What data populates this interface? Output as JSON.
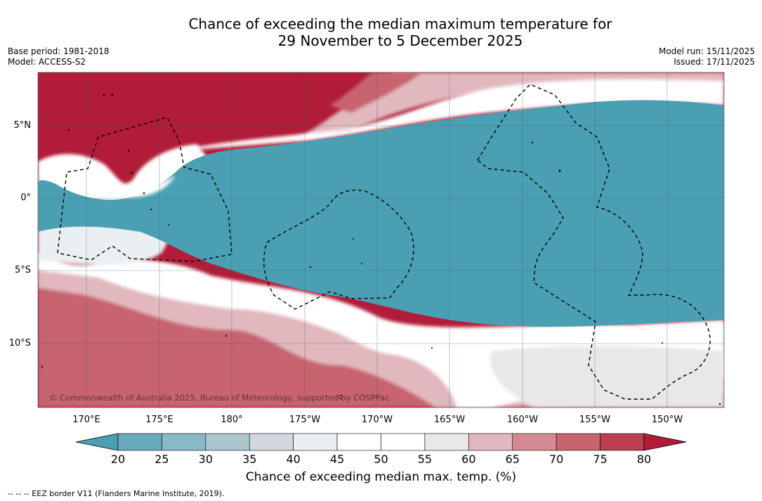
{
  "title_line1": "Chance of exceeding the median maximum temperature for",
  "title_line2": "29 November to 5 December 2025",
  "base_period": "Base period: 1981-2018",
  "model": "Model: ACCESS-S2",
  "model_run": "Model run: 15/11/2025",
  "issued": "Issued: 17/11/2025",
  "copyright": "© Commonwealth of Australia 2025, Bureau of Meteorology, supported by COSPPac",
  "lat_labels": [
    "5°N",
    "0°",
    "5°S",
    "10°S"
  ],
  "lon_labels": [
    "170°E",
    "175°E",
    "180°",
    "175°W",
    "170°W",
    "165°W",
    "160°W",
    "155°W",
    "150°W"
  ],
  "colorbar": {
    "title": "Chance of exceeding median max. temp. (%)",
    "ticks": [
      "20",
      "25",
      "30",
      "35",
      "40",
      "45",
      "50",
      "55",
      "60",
      "65",
      "70",
      "75",
      "80"
    ],
    "colors": [
      "#4aa0b2",
      "#68aabb",
      "#88b9c6",
      "#a9c6cd",
      "#cfd9dd",
      "#eaf0f2",
      "#ffffff",
      "#ffffff",
      "#e9e7e8",
      "#e0b8be",
      "#d48a93",
      "#c86470",
      "#bb3f50",
      "#b11c38"
    ]
  },
  "footnote": "--  --  -- EEZ border V11 (Flanders Marine Institute, 2019)."
}
